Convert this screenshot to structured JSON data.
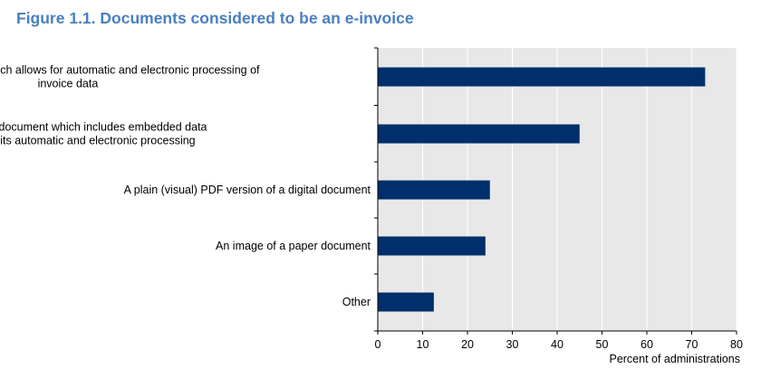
{
  "figure": {
    "title": "Figure 1.1. Documents considered to be an e-invoice"
  },
  "colors": {
    "bar": "#002f6c",
    "plot_background": "#e8e8e8",
    "gridline": "#ffffff",
    "title": "#4a7fc0"
  },
  "chart_data": {
    "type": "bar",
    "orientation": "horizontal",
    "title": "Figure 1.1. Documents considered to be an e-invoice",
    "xlabel": "Percent of administrations",
    "ylabel": "",
    "xlim": [
      0,
      80
    ],
    "xticks": [
      0,
      10,
      20,
      30,
      40,
      50,
      60,
      70,
      80
    ],
    "grid": true,
    "categories": [
      [
        "A structured data set which allows for automatic and electronic processing of",
        "invoice data"
      ],
      [
        "A PDF version of a digital document which includes embedded data",
        "structures that allow for its automatic and electronic processing"
      ],
      [
        "A plain (visual) PDF version of a digital document"
      ],
      [
        "An image of a paper document"
      ],
      [
        "Other"
      ]
    ],
    "values": [
      73,
      45,
      25,
      24,
      12.5
    ]
  }
}
